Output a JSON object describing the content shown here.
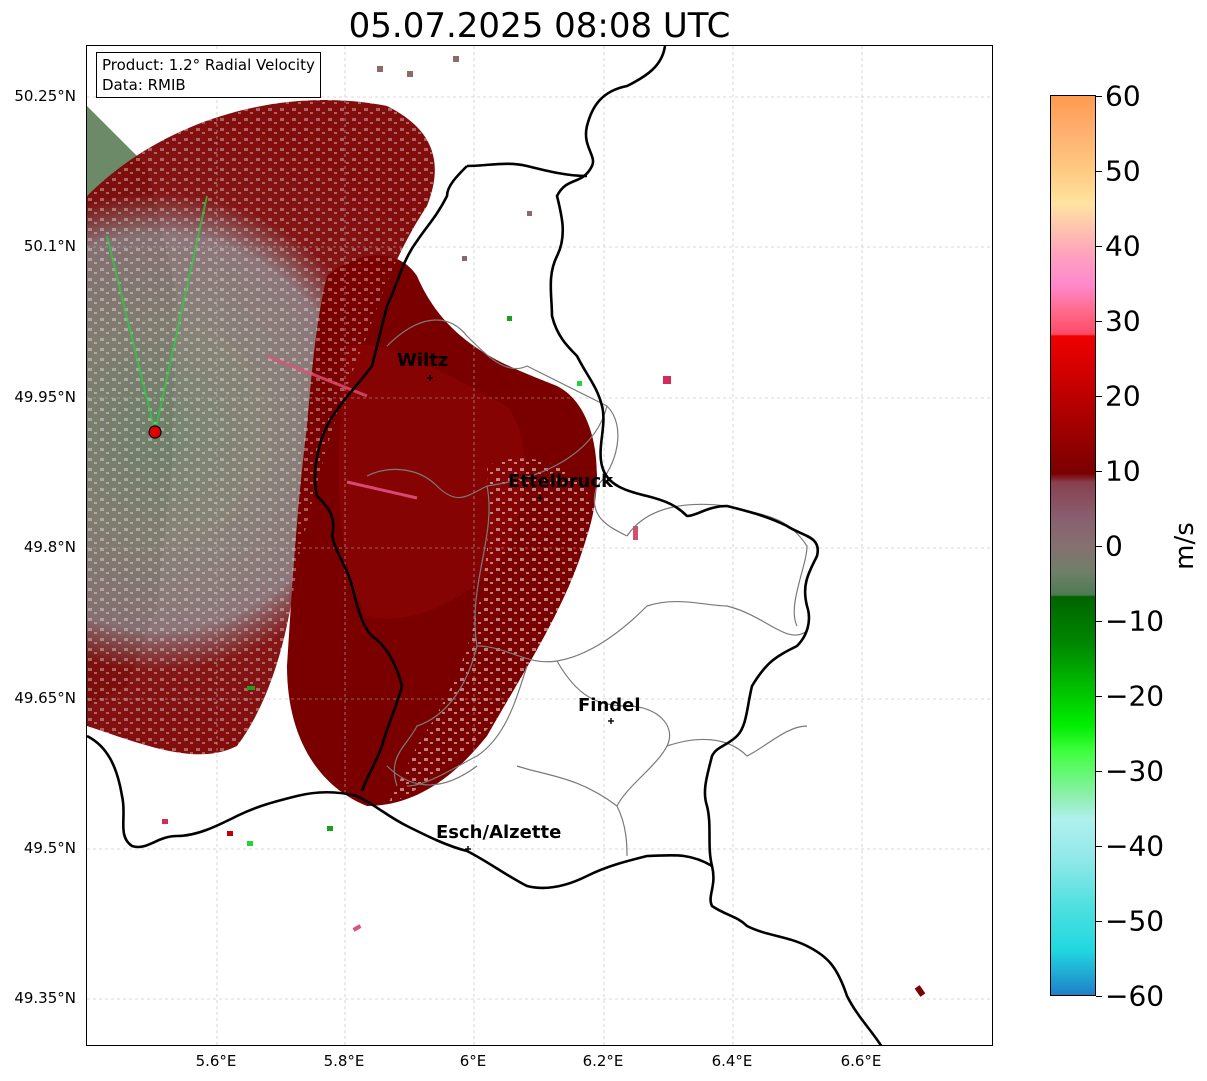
{
  "title": "05.07.2025 08:08 UTC",
  "infobox": {
    "line1": "Product: 1.2° Radial Velocity",
    "line2": "Data: RMIB"
  },
  "lat_labels": [
    "50.25°N",
    "50.1°N",
    "49.95°N",
    "49.8°N",
    "49.65°N",
    "49.5°N",
    "49.35°N"
  ],
  "lon_labels": [
    "5.6°E",
    "5.8°E",
    "6°E",
    "6.2°E",
    "6.4°E",
    "6.6°E"
  ],
  "cities": [
    {
      "name": "Wiltz"
    },
    {
      "name": "Ettelbruck"
    },
    {
      "name": "Findel"
    },
    {
      "name": "Esch/Alzette"
    }
  ],
  "colorbar": {
    "ticks": [
      "60",
      "50",
      "40",
      "30",
      "20",
      "10",
      "0",
      "−10",
      "−20",
      "−30",
      "−40",
      "−50",
      "−60"
    ],
    "unit": "m/s",
    "range": [
      -60,
      60
    ]
  },
  "colors": {
    "approaching_dark": "#4e7a52",
    "neutral": "#8a7272",
    "receding": "#7a0000",
    "receding_bright": "#c80000",
    "radar_site": "#e00000"
  }
}
